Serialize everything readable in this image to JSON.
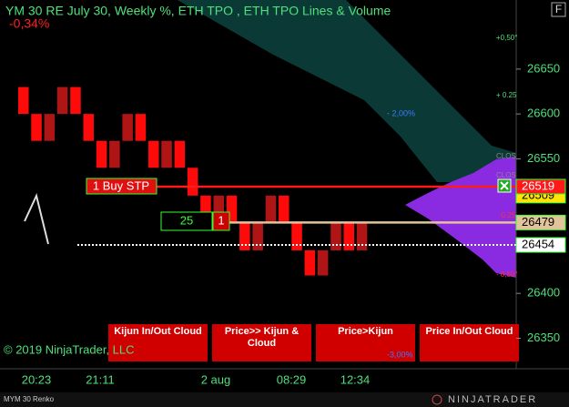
{
  "header": {
    "title": "YM 30 RE July 30, Weekly %, ETH TPO , ETH TPO Lines & Volume",
    "change": "-0,34%",
    "f_button": "F"
  },
  "chart_data": {
    "type": "renko",
    "open": [
      26630,
      26600,
      26570,
      26600,
      26630,
      26600,
      26570,
      26540,
      26570,
      26600,
      26570,
      26540,
      26570,
      26540,
      26509,
      26478,
      26509,
      26478,
      26448,
      26478,
      26509,
      26478,
      26448,
      26420,
      26448,
      26478,
      26448
    ],
    "close": [
      26600,
      26570,
      26600,
      26630,
      26600,
      26570,
      26540,
      26570,
      26600,
      26570,
      26540,
      26570,
      26540,
      26509,
      26478,
      26509,
      26478,
      26448,
      26478,
      26509,
      26478,
      26448,
      26420,
      26448,
      26478,
      26448,
      26478
    ],
    "up_color": "#b01515",
    "down_color": "#ff0a0a",
    "ylim": [
      26316,
      26727
    ],
    "yticks": [
      26350,
      26400,
      26550,
      26600,
      26650
    ],
    "time_labels": [
      "20:23",
      "21:11",
      "2 aug",
      "08:29",
      "12:34"
    ],
    "price_markers": [
      {
        "value": 26519,
        "color": "#ff1a1a",
        "text_color": "#ffffff",
        "line": "solid"
      },
      {
        "value": 26509,
        "color": "#ffe600",
        "text_color": "#000000",
        "line": "none"
      },
      {
        "value": 26479,
        "color": "#e2c49a",
        "text_color": "#000000",
        "line": "solid"
      },
      {
        "value": 26454,
        "color": "#ffffff",
        "text_color": "#000000",
        "line": "dotted"
      }
    ]
  },
  "annotations": {
    "p050": "+0,50°",
    "p025": "+ 0.25",
    "m200": "- 2,00%",
    "clos1": "CLOS",
    "clos2": "CLOS",
    "m025": "-0.25",
    "m050": "- 0,50°"
  },
  "order": {
    "label": "1 Buy STP",
    "quantity": "25",
    "count": "1"
  },
  "buttons": [
    {
      "label": "Kijun In/Out Cloud"
    },
    {
      "label": "Price>> Kijun & Cloud"
    },
    {
      "label": "Price>Kijun",
      "note": "-3,00%"
    },
    {
      "label": "Price In/Out Cloud"
    }
  ],
  "footer": {
    "copyright": "© 2019 NinjaTrader, LLC",
    "instrument": "MYM 30 Renko",
    "logo": "NINJATRADER"
  }
}
